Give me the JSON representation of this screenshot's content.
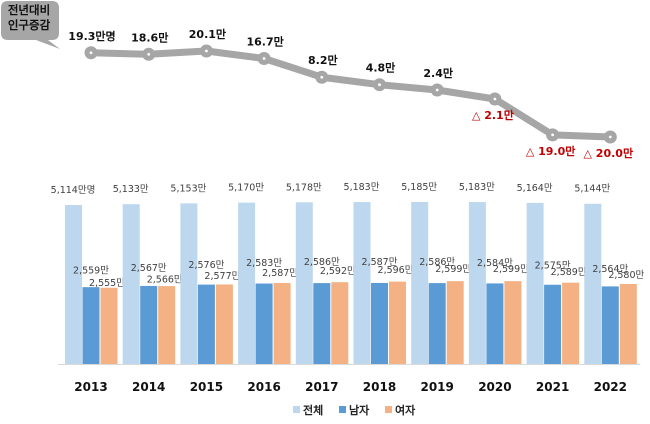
{
  "callout": {
    "line1": "전년대비",
    "line2": "인구증감"
  },
  "colors": {
    "total": "#BDD7EE",
    "male": "#5B9BD5",
    "female": "#F4B183",
    "line": "#A6A6A6",
    "negative": "#C00000",
    "text": "#404040"
  },
  "chart_data": [
    {
      "type": "line",
      "title": "전년대비 인구증감",
      "categories": [
        "2013",
        "2014",
        "2015",
        "2016",
        "2017",
        "2018",
        "2019",
        "2020",
        "2021",
        "2022"
      ],
      "values": [
        19.3,
        18.6,
        20.1,
        16.7,
        8.2,
        4.8,
        2.4,
        -2.1,
        -19.0,
        -20.0
      ],
      "labels": [
        "19.3만명",
        "18.6만",
        "20.1만",
        "16.7만",
        "8.2만",
        "4.8만",
        "2.4만",
        "△ 2.1만",
        "△ 19.0만",
        "△ 20.0만"
      ],
      "unit": "만명"
    },
    {
      "type": "bar",
      "categories": [
        "2013",
        "2014",
        "2015",
        "2016",
        "2017",
        "2018",
        "2019",
        "2020",
        "2021",
        "2022"
      ],
      "series": [
        {
          "name": "전체",
          "values": [
            5114,
            5133,
            5153,
            5170,
            5178,
            5183,
            5185,
            5183,
            5164,
            5144
          ],
          "labels": [
            "5,114만명",
            "5,133만",
            "5,153만",
            "5,170만",
            "5,178만",
            "5,183만",
            "5,185만",
            "5,183만",
            "5,164만",
            "5,144만"
          ]
        },
        {
          "name": "남자",
          "values": [
            2559,
            2567,
            2576,
            2583,
            2586,
            2587,
            2586,
            2584,
            2575,
            2564
          ],
          "labels": [
            "2,559만",
            "2,567만",
            "2,576만",
            "2,583만",
            "2,586만",
            "2,587만",
            "2,586만",
            "2,584만",
            "2,575만",
            "2,564만"
          ]
        },
        {
          "name": "여자",
          "values": [
            2555,
            2566,
            2577,
            2587,
            2592,
            2596,
            2599,
            2599,
            2589,
            2580
          ],
          "labels": [
            "2,555만",
            "2,566만",
            "2,577만",
            "2,587만",
            "2,592만",
            "2,596만",
            "2,599만",
            "2,599만",
            "2,589만",
            "2,580만"
          ]
        }
      ],
      "legend": [
        "전체",
        "남자",
        "여자"
      ],
      "legend_position": "bottom",
      "unit": "만명",
      "grid": false
    }
  ]
}
